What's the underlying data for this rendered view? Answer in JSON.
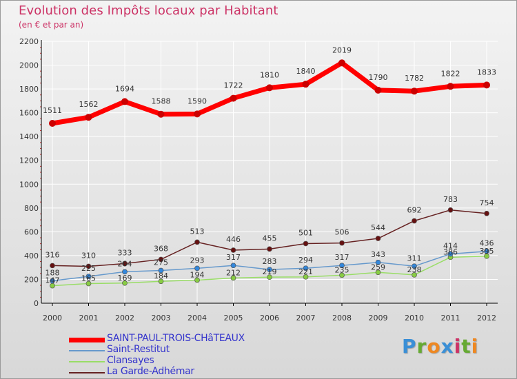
{
  "title": "Evolution des Impôts locaux par Habitant",
  "subtitle": "(en € et par an)",
  "logo": "Proxiti",
  "colors": {
    "title": "#cc3366",
    "grid": "#ffffff",
    "axis": "#000000",
    "label_text": "#333333"
  },
  "chart_data": {
    "type": "line",
    "title": "Evolution des Impôts locaux par Habitant",
    "subtitle": "(en € et par an)",
    "xlabel": "",
    "ylabel": "",
    "categories": [
      "2000",
      "2001",
      "2002",
      "2003",
      "2004",
      "2005",
      "2006",
      "2007",
      "2008",
      "2009",
      "2010",
      "2011",
      "2012"
    ],
    "ylim": [
      0,
      2200
    ],
    "yticks": [
      0,
      200,
      400,
      600,
      800,
      1000,
      1200,
      1400,
      1600,
      1800,
      2000,
      2200
    ],
    "grid": true,
    "legend_position": "bottom-left",
    "series": [
      {
        "name": "SAINT-PAUL-TROIS-CHâTEAUX",
        "color": "#ff0000",
        "marker_color": "#cc0000",
        "legend_text_color": "#3333cc",
        "values": [
          1511,
          1562,
          1694,
          1588,
          1590,
          1722,
          1810,
          1840,
          2019,
          1790,
          1782,
          1822,
          1833
        ]
      },
      {
        "name": "Saint-Restitut",
        "color": "#6699cc",
        "marker_color": "#3388dd",
        "legend_text_color": "#3333cc",
        "values": [
          188,
          225,
          264,
          275,
          293,
          317,
          283,
          294,
          317,
          343,
          311,
          414,
          436
        ]
      },
      {
        "name": "Clansayes",
        "color": "#99dd66",
        "marker_color": "#88cc44",
        "legend_text_color": "#3333cc",
        "values": [
          147,
          165,
          169,
          184,
          194,
          212,
          219,
          221,
          235,
          259,
          238,
          386,
          395
        ]
      },
      {
        "name": "La Garde-Adhémar",
        "color": "#662222",
        "marker_color": "#661111",
        "legend_text_color": "#3333cc",
        "values": [
          316,
          310,
          333,
          368,
          513,
          446,
          455,
          501,
          506,
          544,
          692,
          783,
          754
        ]
      }
    ]
  }
}
